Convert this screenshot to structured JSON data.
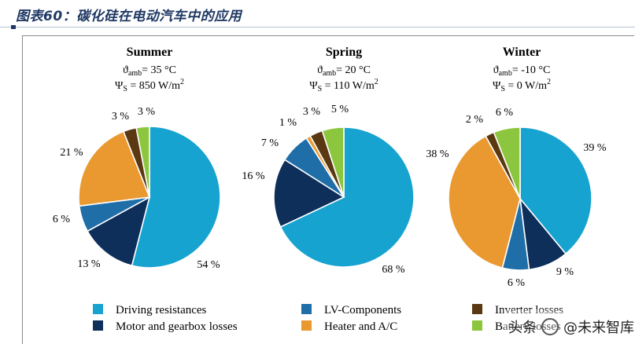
{
  "figure_title": "图表60：碳化硅在电动汽车中的应用",
  "watermark": {
    "prefix": "头条",
    "handle": "@未来智库"
  },
  "colors": {
    "driving": "#16a3cf",
    "motor": "#0d2f5a",
    "lv": "#1f6ea8",
    "heater": "#e9992f",
    "inverter": "#5a3912",
    "battery": "#8cc63e"
  },
  "chart_data": [
    {
      "type": "pie",
      "title": "Summer",
      "conditions": {
        "temp_label": "ϑ",
        "temp_sub": "amb",
        "temp_value": "=  35 °C",
        "irr_label": "Ψ",
        "irr_sub": "S",
        "irr_value": " = 850 W/m",
        "irr_sup": "2"
      },
      "slices": [
        {
          "key": "driving",
          "value": 54,
          "label": "54 %"
        },
        {
          "key": "motor",
          "value": 13,
          "label": "13  %"
        },
        {
          "key": "lv",
          "value": 6,
          "label": "6 %"
        },
        {
          "key": "heater",
          "value": 21,
          "label": "21  %"
        },
        {
          "key": "inverter",
          "value": 3,
          "label": "3  %"
        },
        {
          "key": "battery",
          "value": 3,
          "label": "3 %"
        }
      ]
    },
    {
      "type": "pie",
      "title": "Spring",
      "conditions": {
        "temp_label": "ϑ",
        "temp_sub": "amb",
        "temp_value": "=  20 °C",
        "irr_label": "Ψ",
        "irr_sub": "S",
        "irr_value": " = 110 W/m",
        "irr_sup": "2"
      },
      "slices": [
        {
          "key": "driving",
          "value": 68,
          "label": "68  %"
        },
        {
          "key": "motor",
          "value": 16,
          "label": "16  %"
        },
        {
          "key": "lv",
          "value": 7,
          "label": "7 %"
        },
        {
          "key": "heater",
          "value": 1,
          "label": "1  %"
        },
        {
          "key": "inverter",
          "value": 3,
          "label": "3 %"
        },
        {
          "key": "battery",
          "value": 5,
          "label": "5 %"
        }
      ]
    },
    {
      "type": "pie",
      "title": "Winter",
      "conditions": {
        "temp_label": "ϑ",
        "temp_sub": "amb",
        "temp_value": "=  -10 °C",
        "irr_label": "Ψ",
        "irr_sub": "S",
        "irr_value": " = 0 W/m",
        "irr_sup": "2"
      },
      "slices": [
        {
          "key": "driving",
          "value": 39,
          "label": "39  %"
        },
        {
          "key": "motor",
          "value": 9,
          "label": "9  %"
        },
        {
          "key": "lv",
          "value": 6,
          "label": "6 %"
        },
        {
          "key": "heater",
          "value": 38,
          "label": "38  %"
        },
        {
          "key": "inverter",
          "value": 2,
          "label": "2 %"
        },
        {
          "key": "battery",
          "value": 6,
          "label": "6 %"
        }
      ]
    }
  ],
  "legend": [
    {
      "key": "driving",
      "label": "Driving resistances"
    },
    {
      "key": "lv",
      "label": "LV-Components"
    },
    {
      "key": "inverter",
      "label": "Inverter losses"
    },
    {
      "key": "motor",
      "label": "Motor and gearbox losses"
    },
    {
      "key": "heater",
      "label": "Heater and A/C"
    },
    {
      "key": "battery",
      "label": "Battery losses"
    }
  ]
}
